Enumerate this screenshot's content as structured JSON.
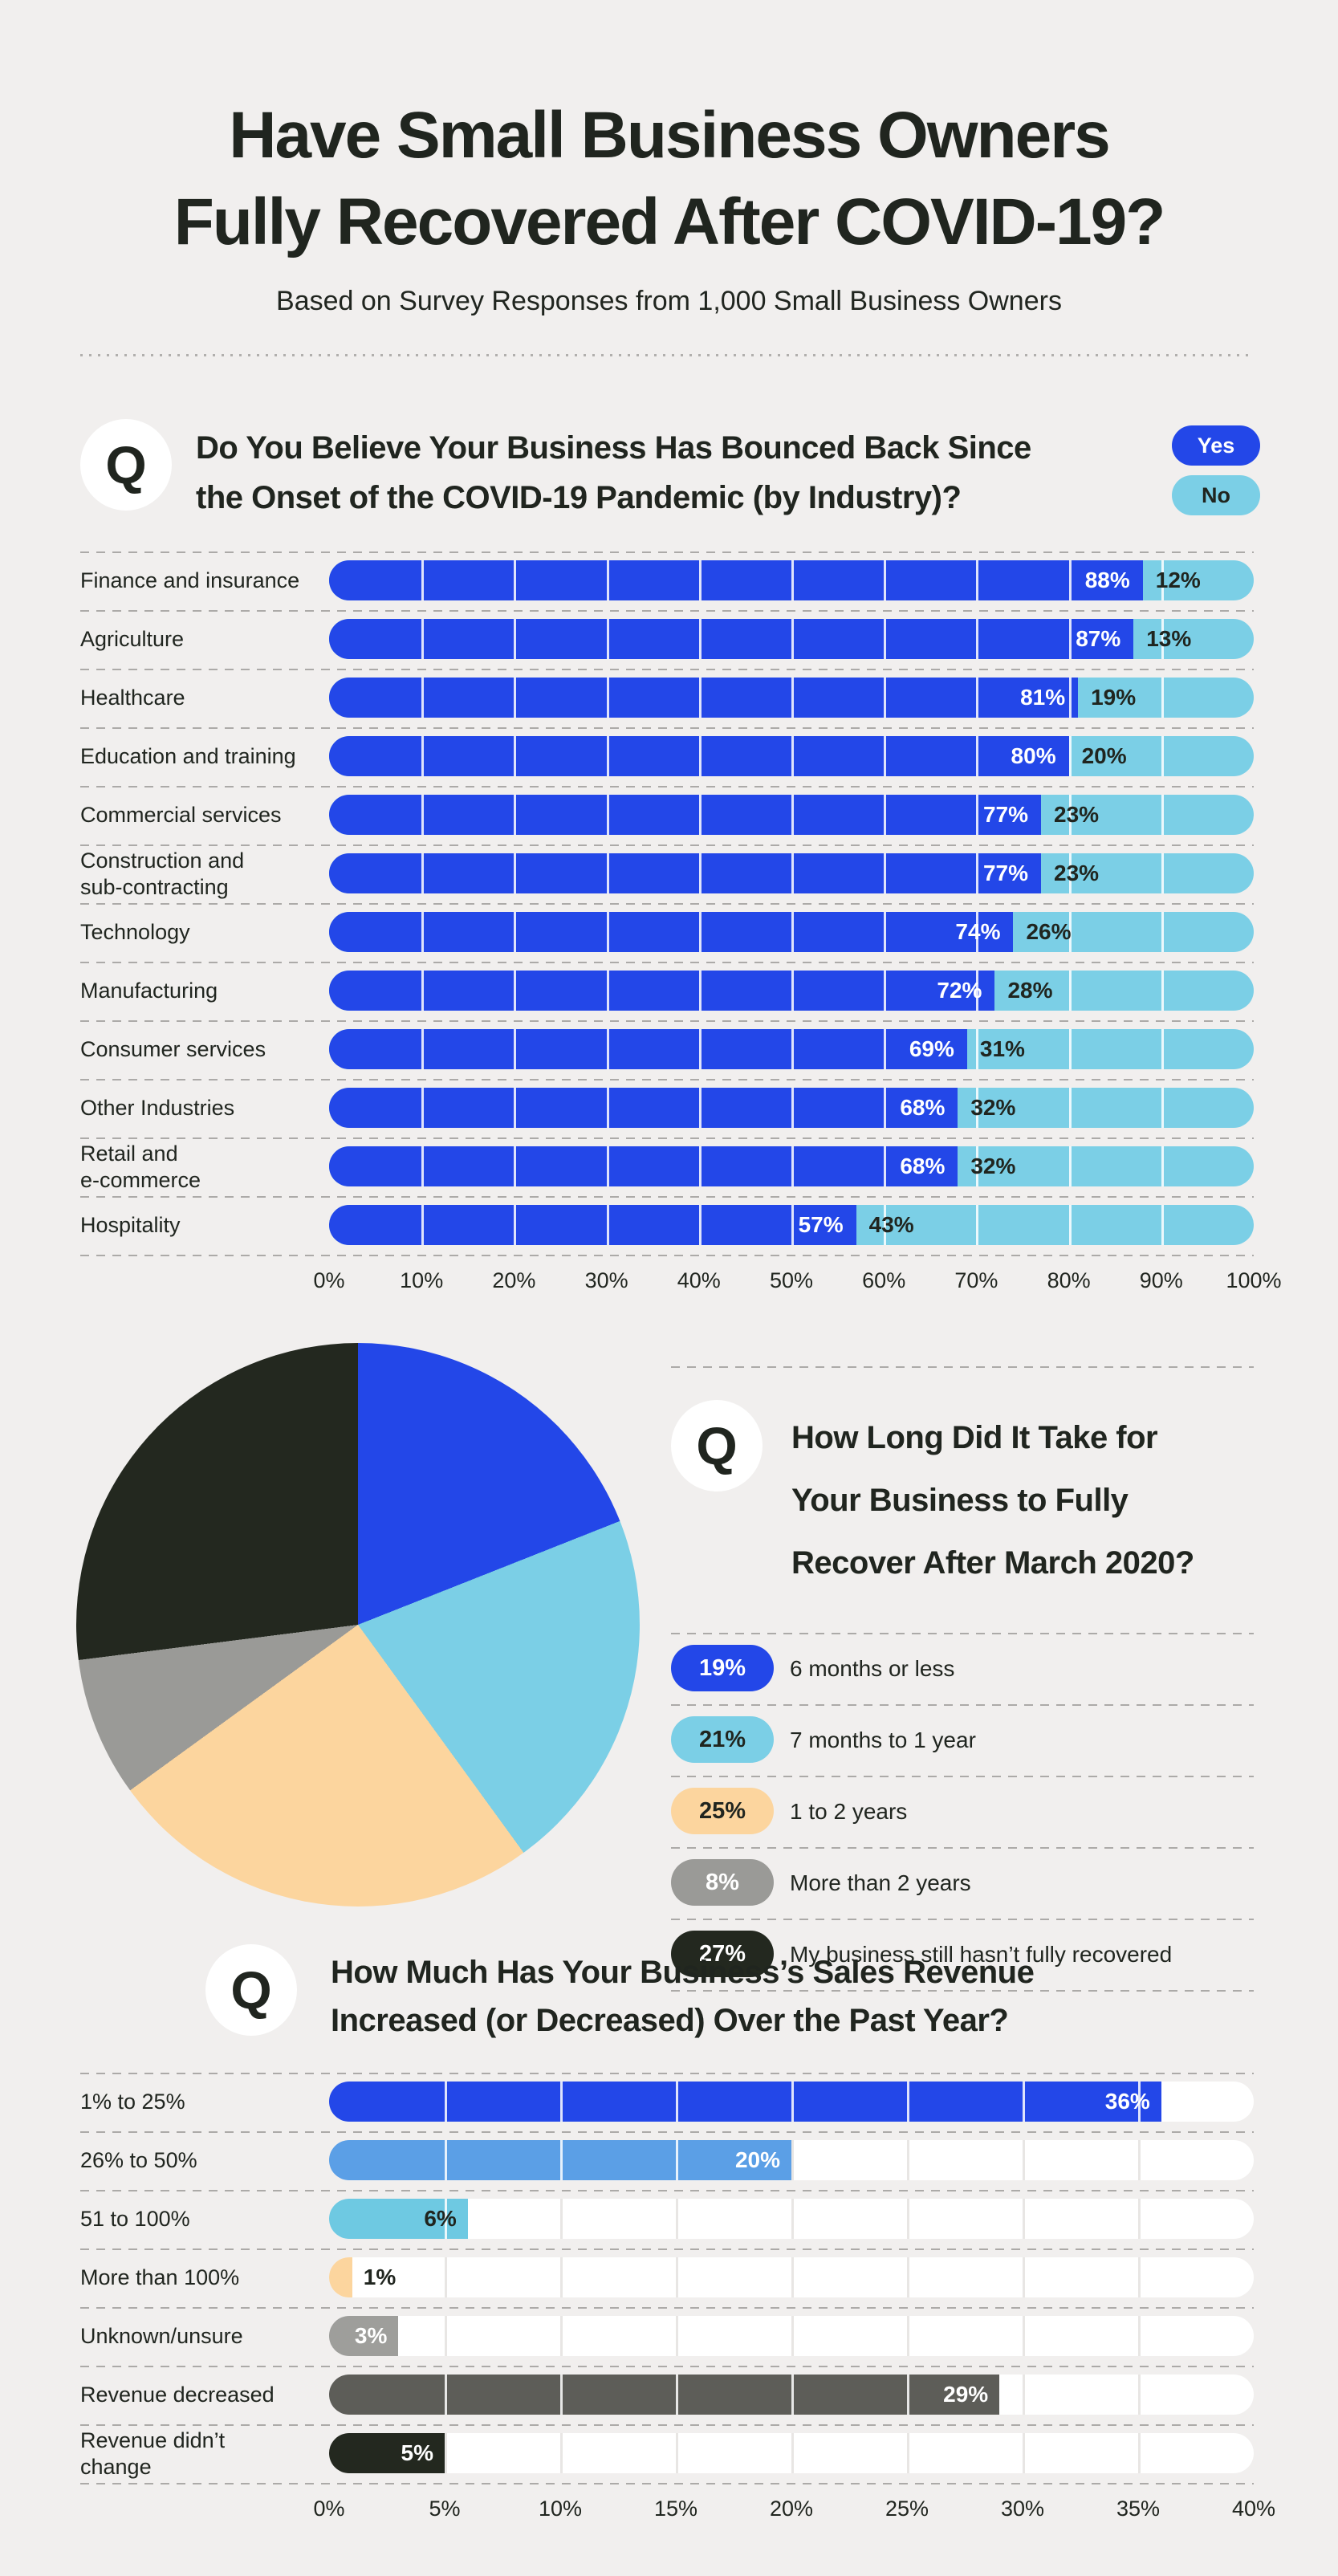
{
  "page": {
    "background": "#f1efee",
    "text_color": "#20251f",
    "accent_blue": "#2347e8",
    "accent_lightblue": "#7bcfe6"
  },
  "header": {
    "title_line1": "Have Small Business Owners",
    "title_line2": "Fully Recovered After COVID-19?",
    "subtitle": "Based on Survey Responses from 1,000 Small Business Owners"
  },
  "q_badge": "Q",
  "chart_data": [
    {
      "type": "bar",
      "question_lines": [
        "Do You Believe Your Business Has Bounced Back Since",
        "the Onset of the COVID-19 Pandemic (by Industry)?"
      ],
      "legend": [
        {
          "label": "Yes",
          "color": "#2347e8",
          "text_color": "#ffffff"
        },
        {
          "label": "No",
          "color": "#7bcfe6",
          "text_color": "#20251f"
        }
      ],
      "categories": [
        "Finance and insurance",
        "Agriculture",
        "Healthcare",
        "Education and training",
        "Commercial services",
        "Construction and\nsub-contracting",
        "Technology",
        "Manufacturing",
        "Consumer services",
        "Other Industries",
        "Retail and\ne-commerce",
        "Hospitality"
      ],
      "series": [
        {
          "name": "Yes",
          "values": [
            88,
            87,
            81,
            80,
            77,
            77,
            74,
            72,
            69,
            68,
            68,
            57
          ]
        },
        {
          "name": "No",
          "values": [
            12,
            13,
            19,
            20,
            23,
            23,
            26,
            28,
            31,
            32,
            32,
            43
          ]
        }
      ],
      "x_ticks": [
        "0%",
        "10%",
        "20%",
        "30%",
        "40%",
        "50%",
        "60%",
        "70%",
        "80%",
        "90%",
        "100%"
      ],
      "xlim": [
        0,
        100
      ],
      "grid": true,
      "legend_position": "top-right"
    },
    {
      "type": "pie",
      "question_lines": [
        "How Long Did It Take for",
        "Your Business to Fully",
        "Recover After March 2020?"
      ],
      "slices": [
        {
          "label": "6 months or less",
          "value": 19,
          "color": "#2347e8",
          "value_text_color": "#ffffff"
        },
        {
          "label": "7 months to 1 year",
          "value": 21,
          "color": "#7bcfe6",
          "value_text_color": "#20251f"
        },
        {
          "label": "1 to 2 years",
          "value": 25,
          "color": "#fcd59e",
          "value_text_color": "#20251f"
        },
        {
          "label": "More than 2 years",
          "value": 8,
          "color": "#9a9a97",
          "value_text_color": "#ffffff"
        },
        {
          "label": "My business still hasn’t fully recovered",
          "value": 27,
          "color": "#23281f",
          "value_text_color": "#ffffff"
        }
      ],
      "start_angle_deg": 0,
      "direction": "clockwise",
      "legend_position": "right-list"
    },
    {
      "type": "bar",
      "question_lines": [
        "How Much Has Your Business’s Sales Revenue",
        "Increased (or Decreased) Over the Past Year?"
      ],
      "categories": [
        "1% to 25%",
        "26% to 50%",
        "51 to 100%",
        "More than 100%",
        "Unknown/unsure",
        "Revenue decreased",
        "Revenue didn’t\nchange"
      ],
      "values": [
        36,
        20,
        6,
        1,
        3,
        29,
        5
      ],
      "bar_colors": [
        "#2347e8",
        "#5b9fe6",
        "#6ec9e2",
        "#fcd59e",
        "#9e9e9b",
        "#5d5d58",
        "#23281f"
      ],
      "value_label_colors": [
        "#ffffff",
        "#ffffff",
        "#20251f",
        "#20251f",
        "#ffffff",
        "#ffffff",
        "#ffffff"
      ],
      "value_label_inside": [
        true,
        true,
        true,
        false,
        true,
        true,
        true
      ],
      "track_color": "#ffffff",
      "x_ticks": [
        "0%",
        "5%",
        "10%",
        "15%",
        "20%",
        "25%",
        "30%",
        "35%",
        "40%"
      ],
      "xlim": [
        0,
        40
      ],
      "grid": true
    }
  ]
}
